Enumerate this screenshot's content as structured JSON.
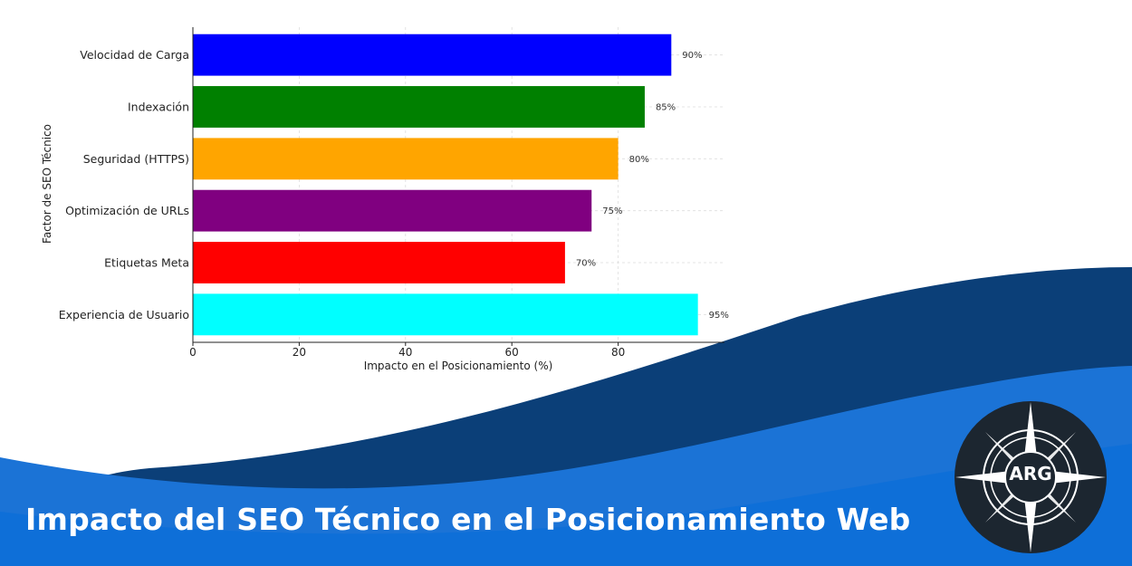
{
  "banner": {
    "title": "Impacto del SEO Técnico en el Posicionamiento Web"
  },
  "logo": {
    "text": "ARG",
    "icon": "compass-star-icon"
  },
  "colors": {
    "wave_dark": "#0b3f78",
    "wave_mid": "#0a4fa3",
    "wave_light": "#1b73d6",
    "banner_blue": "#0e6fd8",
    "logo_bg": "#1c2630"
  },
  "chart_data": {
    "type": "bar",
    "orientation": "horizontal",
    "categories": [
      "Velocidad de Carga",
      "Indexación",
      "Seguridad (HTTPS)",
      "Optimización de URLs",
      "Etiquetas Meta",
      "Experiencia de Usuario"
    ],
    "values": [
      90,
      85,
      80,
      75,
      70,
      95
    ],
    "value_labels": [
      "90%",
      "85%",
      "80%",
      "75%",
      "70%",
      "95%"
    ],
    "bar_colors": [
      "#0000ff",
      "#008000",
      "#ffa500",
      "#800080",
      "#ff0000",
      "#00ffff"
    ],
    "xlabel": "Impacto en el Posicionamiento (%)",
    "ylabel": "Factor de SEO Técnico",
    "xlim": [
      0,
      100
    ],
    "xticks": [
      0,
      20,
      40,
      60,
      80
    ],
    "grid": true
  }
}
